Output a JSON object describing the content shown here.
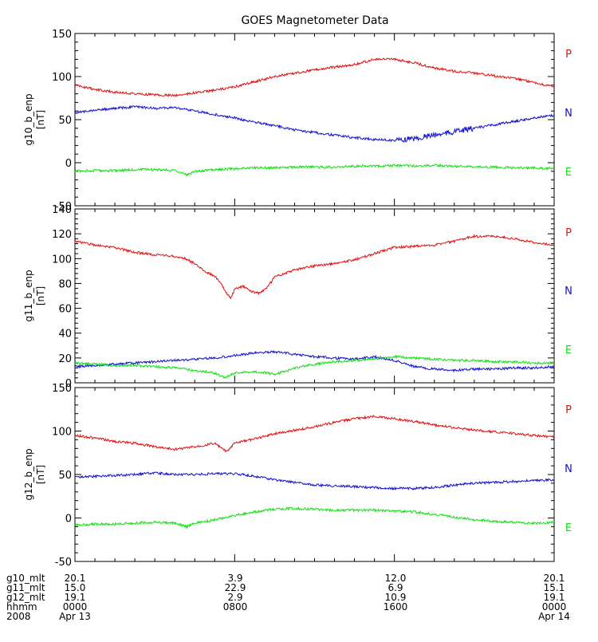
{
  "chart_data": {
    "type": "line",
    "title": "GOES Magnetometer Data",
    "x_range_hours": [
      0,
      24
    ],
    "x_ticks_hours": [
      0,
      8,
      16,
      24
    ],
    "series_colors": {
      "P": "#e01010",
      "N": "#1010d0",
      "E": "#10e010"
    },
    "legend_labels": [
      "P",
      "N",
      "E"
    ],
    "panels": [
      {
        "ylabel": "g10_b_enp",
        "yunit": "[nT]",
        "ylim": [
          -50,
          150
        ],
        "yticks": [
          -50,
          0,
          50,
          100,
          150
        ],
        "series": [
          {
            "name": "P",
            "x": [
              0,
              1,
              2,
              3,
              4,
              5,
              6,
              7,
              8,
              9,
              10,
              11,
              12,
              13,
              14,
              15,
              16,
              17,
              18,
              19,
              20,
              21,
              22,
              23,
              24
            ],
            "y": [
              90,
              85,
              82,
              80,
              79,
              78,
              81,
              84,
              88,
              94,
              100,
              104,
              108,
              111,
              114,
              120,
              120,
              116,
              110,
              106,
              104,
              101,
              98,
              93,
              88
            ]
          },
          {
            "name": "N",
            "x": [
              0,
              1,
              2,
              3,
              4,
              5,
              6,
              7,
              8,
              9,
              10,
              11,
              12,
              13,
              14,
              15,
              16,
              17,
              18,
              19,
              20,
              21,
              22,
              23,
              24
            ],
            "y": [
              58,
              61,
              63,
              65,
              63,
              64,
              60,
              56,
              52,
              47,
              43,
              38,
              35,
              32,
              29,
              27,
              26,
              28,
              32,
              36,
              40,
              44,
              48,
              52,
              55
            ]
          },
          {
            "name": "E",
            "x": [
              0,
              1,
              2,
              3,
              4,
              5,
              5.6,
              6,
              7,
              8,
              9,
              10,
              11,
              12,
              13,
              14,
              15,
              16,
              17,
              18,
              19,
              20,
              21,
              22,
              23,
              24
            ],
            "y": [
              -10,
              -9,
              -9,
              -8,
              -8,
              -9,
              -14,
              -10,
              -8,
              -7,
              -6,
              -6,
              -5,
              -5,
              -5,
              -4,
              -4,
              -3,
              -4,
              -3,
              -4,
              -5,
              -5,
              -6,
              -6,
              -7
            ]
          }
        ]
      },
      {
        "ylabel": "g11_b_enp",
        "yunit": "[nT]",
        "ylim": [
          0,
          140
        ],
        "yticks": [
          0,
          20,
          40,
          60,
          80,
          100,
          120,
          140
        ],
        "series": [
          {
            "name": "P",
            "x": [
              0,
              1,
              2,
              3,
              4,
              5,
              5.5,
              6,
              6.5,
              7,
              7.3,
              7.6,
              7.8,
              8,
              8.4,
              8.8,
              9.2,
              9.6,
              10,
              11,
              12,
              13,
              14,
              15,
              16,
              17,
              18,
              19,
              20,
              21,
              22,
              23,
              24
            ],
            "y": [
              114,
              111,
              109,
              105,
              103,
              102,
              100,
              96,
              90,
              86,
              80,
              72,
              68,
              75,
              78,
              74,
              72,
              76,
              85,
              91,
              94,
              96,
              99,
              104,
              109,
              110,
              111,
              114,
              118,
              118,
              116,
              113,
              111
            ]
          },
          {
            "name": "N",
            "x": [
              0,
              1,
              2,
              3,
              4,
              5,
              6,
              7,
              8,
              9,
              10,
              11,
              12,
              13,
              14,
              15,
              16,
              17,
              18,
              19,
              20,
              21,
              22,
              23,
              24
            ],
            "y": [
              13,
              14,
              15,
              16,
              17,
              18,
              19,
              20,
              22,
              24,
              25,
              23,
              21,
              20,
              19,
              21,
              18,
              13,
              11,
              10,
              11,
              11,
              12,
              12,
              13
            ]
          },
          {
            "name": "E",
            "x": [
              0,
              1,
              2,
              3,
              4,
              5,
              6,
              7,
              7.5,
              8,
              9,
              10,
              10.5,
              11,
              12,
              13,
              14,
              15,
              16,
              17,
              18,
              19,
              20,
              21,
              22,
              23,
              24
            ],
            "y": [
              16,
              15,
              14,
              14,
              13,
              12,
              10,
              8,
              4,
              8,
              9,
              7,
              9,
              12,
              15,
              17,
              18,
              19,
              21,
              20,
              19,
              18,
              18,
              17,
              17,
              16,
              16
            ]
          }
        ]
      },
      {
        "ylabel": "g12_b_enp",
        "yunit": "[nT]",
        "ylim": [
          -50,
          150
        ],
        "yticks": [
          -50,
          0,
          50,
          100,
          150
        ],
        "series": [
          {
            "name": "P",
            "x": [
              0,
              1,
              2,
              3,
              4,
              5,
              6,
              7,
              7.6,
              8,
              9,
              10,
              11,
              12,
              13,
              14,
              15,
              16,
              17,
              18,
              19,
              20,
              21,
              22,
              23,
              24
            ],
            "y": [
              95,
              92,
              88,
              86,
              82,
              79,
              82,
              86,
              76,
              86,
              91,
              97,
              101,
              105,
              110,
              114,
              117,
              114,
              111,
              107,
              104,
              101,
              99,
              97,
              95,
              93
            ]
          },
          {
            "name": "N",
            "x": [
              0,
              1,
              2,
              3,
              4,
              5,
              6,
              7,
              8,
              9,
              10,
              11,
              12,
              13,
              14,
              15,
              16,
              17,
              18,
              19,
              20,
              21,
              22,
              23,
              24
            ],
            "y": [
              47,
              48,
              49,
              50,
              52,
              50,
              50,
              51,
              51,
              48,
              44,
              41,
              38,
              37,
              36,
              35,
              34,
              34,
              35,
              38,
              40,
              41,
              42,
              43,
              44
            ]
          },
          {
            "name": "E",
            "x": [
              0,
              1,
              2,
              3,
              4,
              5,
              5.6,
              6,
              7,
              8,
              9,
              10,
              11,
              12,
              13,
              14,
              15,
              16,
              17,
              18,
              19,
              20,
              21,
              22,
              23,
              24
            ],
            "y": [
              -8,
              -7,
              -7,
              -6,
              -5,
              -6,
              -10,
              -6,
              -2,
              3,
              7,
              10,
              11,
              10,
              9,
              9,
              9,
              8,
              7,
              4,
              1,
              -2,
              -4,
              -5,
              -6,
              -5
            ]
          }
        ]
      }
    ],
    "xaxis_rows": [
      {
        "label": "g10_mlt",
        "values": [
          "20.1",
          "3.9",
          "12.0",
          "20.1"
        ]
      },
      {
        "label": "g11_mlt",
        "values": [
          "15.0",
          "22.9",
          "6.9",
          "15.1"
        ]
      },
      {
        "label": "g12_mlt",
        "values": [
          "19.1",
          "2.9",
          "10.9",
          "19.1"
        ]
      },
      {
        "label": "hhmm",
        "values": [
          "0000",
          "0800",
          "1600",
          "0000"
        ]
      },
      {
        "label": "2008",
        "values": [
          "Apr 13",
          "",
          "",
          "Apr 14"
        ]
      }
    ]
  }
}
